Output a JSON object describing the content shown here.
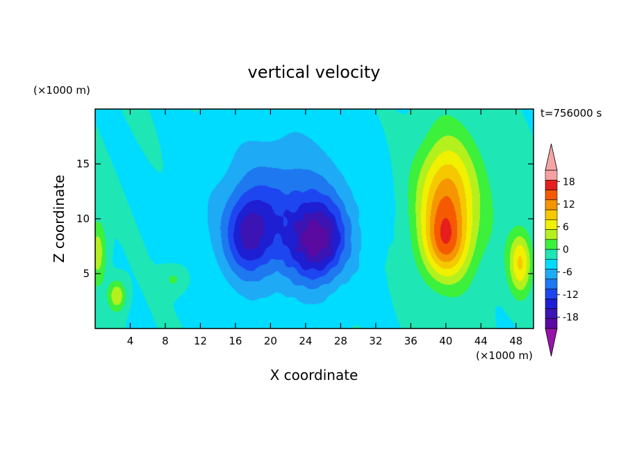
{
  "chart_data": {
    "type": "heatmap",
    "title": "vertical velocity",
    "time_label": "t=756000 s",
    "xlabel": "X coordinate",
    "ylabel": "Z coordinate",
    "x_units": "(×1000 m)",
    "y_units": "(×1000 m)",
    "xlim": [
      0,
      50
    ],
    "ylim": [
      0,
      20
    ],
    "x_ticks": [
      4,
      8,
      12,
      16,
      20,
      24,
      28,
      32,
      36,
      40,
      44,
      48
    ],
    "y_ticks": [
      5,
      10,
      15
    ],
    "colorbar": {
      "labels": [
        18,
        12,
        6,
        0,
        -6,
        -12,
        -18
      ],
      "levels": [
        -21,
        -18,
        -15,
        -12,
        -9,
        -6,
        -3,
        0,
        3,
        6,
        9,
        12,
        15,
        18,
        21
      ],
      "colors": [
        "#5a0aa0",
        "#3c14b4",
        "#1e1ed2",
        "#1e46f0",
        "#1e78f0",
        "#1eaaf5",
        "#00dcff",
        "#1ee6b4",
        "#3cf03c",
        "#b4f01e",
        "#f0f000",
        "#f5c800",
        "#f59600",
        "#f55a00",
        "#e61e1e",
        "#f5a0a0"
      ],
      "over_color": "#f5a5a5",
      "under_color": "#9614aa"
    },
    "features": [
      {
        "kind": "updraft",
        "x": 40,
        "z": 11.5,
        "peak": 14,
        "sx": 3.0,
        "sz": 5.5
      },
      {
        "kind": "updraft",
        "x": 40,
        "z": 7.5,
        "peak": 9,
        "sx": 2.5,
        "sz": 3.0
      },
      {
        "kind": "updraft",
        "x": 48.5,
        "z": 6.0,
        "peak": 12,
        "sx": 1.3,
        "sz": 2.8
      },
      {
        "kind": "updraft",
        "x": 0.3,
        "z": 7.0,
        "peak": 8,
        "sx": 1.0,
        "sz": 3.0
      },
      {
        "kind": "updraft",
        "x": 2.5,
        "z": 3.0,
        "peak": 9,
        "sx": 1.0,
        "sz": 1.4
      },
      {
        "kind": "updraft",
        "x": 9.0,
        "z": 4.5,
        "peak": 4,
        "sx": 1.5,
        "sz": 1.2
      },
      {
        "kind": "downdraft",
        "x": 25.5,
        "z": 8.0,
        "peak": -15,
        "sx": 3.0,
        "sz": 3.5
      },
      {
        "kind": "downdraft",
        "x": 17.5,
        "z": 8.5,
        "peak": -11,
        "sx": 2.5,
        "sz": 3.5
      },
      {
        "kind": "downdraft",
        "x": 21.0,
        "z": 10.0,
        "peak": -6,
        "sx": 6.0,
        "sz": 6.0
      }
    ]
  }
}
